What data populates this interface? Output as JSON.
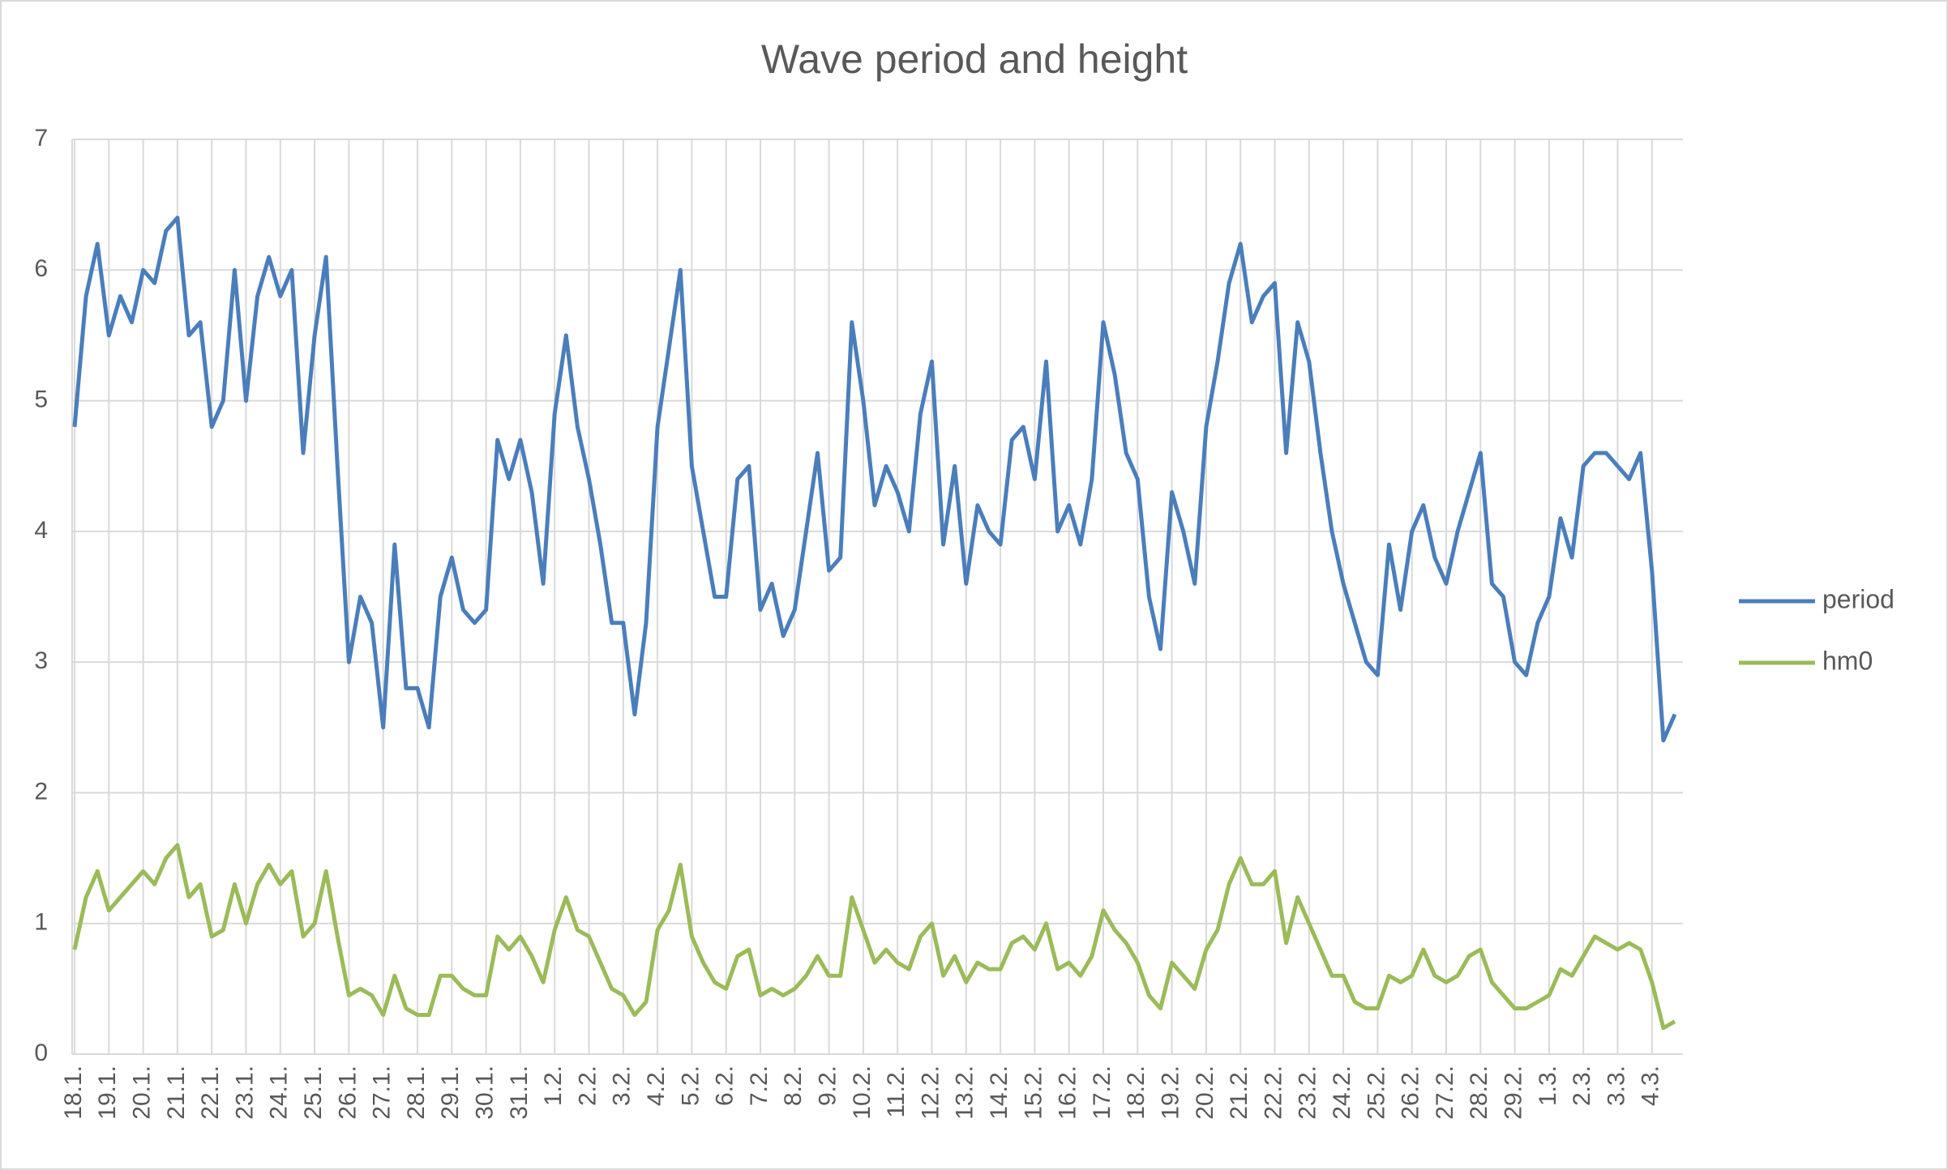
{
  "chart_data": {
    "type": "line",
    "title": "Wave period and height",
    "categories": [
      "18.1.",
      null,
      null,
      "19.1.",
      null,
      null,
      "20.1.",
      null,
      null,
      "21.1.",
      null,
      null,
      "22.1.",
      null,
      null,
      "23.1.",
      null,
      null,
      "24.1.",
      null,
      null,
      "25.1.",
      null,
      null,
      "26.1.",
      null,
      null,
      "27.1.",
      null,
      null,
      "28.1.",
      null,
      null,
      "29.1.",
      null,
      null,
      "30.1.",
      null,
      null,
      "31.1.",
      null,
      null,
      "1.2.",
      null,
      null,
      "2.2.",
      null,
      null,
      "3.2.",
      null,
      null,
      "4.2.",
      null,
      null,
      "5.2.",
      null,
      null,
      "6.2.",
      null,
      null,
      "7.2.",
      null,
      null,
      "8.2.",
      null,
      null,
      "9.2.",
      null,
      null,
      "10.2.",
      null,
      null,
      "11.2.",
      null,
      null,
      "12.2.",
      null,
      null,
      "13.2.",
      null,
      null,
      "14.2.",
      null,
      null,
      "15.2.",
      null,
      null,
      "16.2.",
      null,
      null,
      "17.2.",
      null,
      null,
      "18.2.",
      null,
      null,
      "19.2.",
      null,
      null,
      "20.2.",
      null,
      null,
      "21.2.",
      null,
      null,
      "22.2.",
      null,
      null,
      "23.2.",
      null,
      null,
      "24.2.",
      null,
      null,
      "25.2.",
      null,
      null,
      "26.2.",
      null,
      null,
      "27.2.",
      null,
      null,
      "28.2.",
      null,
      null,
      "29.2.",
      null,
      null,
      "1.3.",
      null,
      null,
      "2.3.",
      null,
      null,
      "3.3.",
      null,
      null,
      "4.3.",
      null,
      null
    ],
    "series": [
      {
        "name": "period",
        "color": "#4a7ebb",
        "values": [
          4.8,
          5.8,
          6.2,
          5.5,
          5.8,
          5.6,
          6.0,
          5.9,
          6.3,
          6.4,
          5.5,
          5.6,
          4.8,
          5.0,
          6.0,
          5.0,
          5.8,
          6.1,
          5.8,
          6.0,
          4.6,
          5.5,
          6.1,
          4.5,
          3.0,
          3.5,
          3.3,
          2.5,
          3.9,
          2.8,
          2.8,
          2.5,
          3.5,
          3.8,
          3.4,
          3.3,
          3.4,
          4.7,
          4.4,
          4.7,
          4.3,
          3.6,
          4.9,
          5.5,
          4.8,
          4.4,
          3.9,
          3.3,
          3.3,
          2.6,
          3.3,
          4.8,
          5.4,
          6.0,
          4.5,
          4.0,
          3.5,
          3.5,
          4.4,
          4.5,
          3.4,
          3.6,
          3.2,
          3.4,
          4.0,
          4.6,
          3.7,
          3.8,
          5.6,
          5.0,
          4.2,
          4.5,
          4.3,
          4.0,
          4.9,
          5.3,
          3.9,
          4.5,
          3.6,
          4.2,
          4.0,
          3.9,
          4.7,
          4.8,
          4.4,
          5.3,
          4.0,
          4.2,
          3.9,
          4.4,
          5.6,
          5.2,
          4.6,
          4.4,
          3.5,
          3.1,
          4.3,
          4.0,
          3.6,
          4.8,
          5.3,
          5.9,
          6.2,
          5.6,
          5.8,
          5.9,
          4.6,
          5.6,
          5.3,
          4.6,
          4.0,
          3.6,
          3.3,
          3.0,
          2.9,
          3.9,
          3.4,
          4.0,
          4.2,
          3.8,
          3.6,
          4.0,
          4.3,
          4.6,
          3.6,
          3.5,
          3.0,
          2.9,
          3.3,
          3.5,
          4.1,
          3.8,
          4.5,
          4.6,
          4.6,
          4.5,
          4.4,
          4.6,
          3.7,
          2.4,
          2.6
        ]
      },
      {
        "name": "hm0",
        "color": "#9bbb59",
        "values": [
          0.8,
          1.2,
          1.4,
          1.1,
          1.2,
          1.3,
          1.4,
          1.3,
          1.5,
          1.6,
          1.2,
          1.3,
          0.9,
          0.95,
          1.3,
          1.0,
          1.3,
          1.45,
          1.3,
          1.4,
          0.9,
          1.0,
          1.4,
          0.9,
          0.45,
          0.5,
          0.45,
          0.3,
          0.6,
          0.35,
          0.3,
          0.3,
          0.6,
          0.6,
          0.5,
          0.45,
          0.45,
          0.9,
          0.8,
          0.9,
          0.75,
          0.55,
          0.95,
          1.2,
          0.95,
          0.9,
          0.7,
          0.5,
          0.45,
          0.3,
          0.4,
          0.95,
          1.1,
          1.45,
          0.9,
          0.7,
          0.55,
          0.5,
          0.75,
          0.8,
          0.45,
          0.5,
          0.45,
          0.5,
          0.6,
          0.75,
          0.6,
          0.6,
          1.2,
          0.95,
          0.7,
          0.8,
          0.7,
          0.65,
          0.9,
          1.0,
          0.6,
          0.75,
          0.55,
          0.7,
          0.65,
          0.65,
          0.85,
          0.9,
          0.8,
          1.0,
          0.65,
          0.7,
          0.6,
          0.75,
          1.1,
          0.95,
          0.85,
          0.7,
          0.45,
          0.35,
          0.7,
          0.6,
          0.5,
          0.8,
          0.95,
          1.3,
          1.5,
          1.3,
          1.3,
          1.4,
          0.85,
          1.2,
          1.0,
          0.8,
          0.6,
          0.6,
          0.4,
          0.35,
          0.35,
          0.6,
          0.55,
          0.6,
          0.8,
          0.6,
          0.55,
          0.6,
          0.75,
          0.8,
          0.55,
          0.45,
          0.35,
          0.35,
          0.4,
          0.45,
          0.65,
          0.6,
          0.75,
          0.9,
          0.85,
          0.8,
          0.85,
          0.8,
          0.55,
          0.2,
          0.25
        ]
      }
    ],
    "ylim": [
      0,
      7
    ],
    "yticks": [
      0,
      1,
      2,
      3,
      4,
      5,
      6,
      7
    ],
    "grid": true,
    "legend": "right"
  }
}
